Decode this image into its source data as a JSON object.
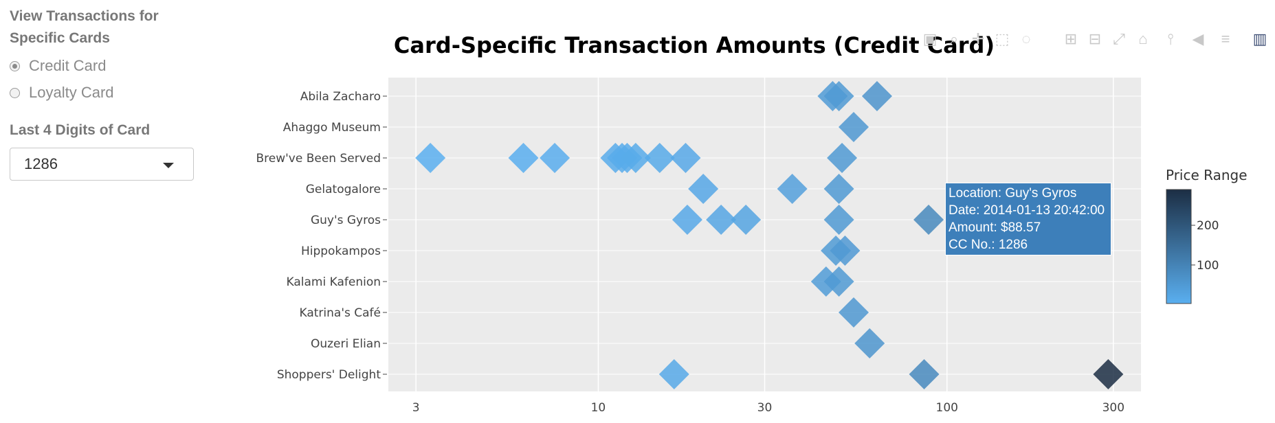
{
  "sidebar": {
    "heading": "View Transactions for Specific Cards",
    "heading_line1": "View Transactions for",
    "heading_line2": "Specific Cards",
    "radio_options": [
      {
        "label": "Credit Card",
        "checked": true
      },
      {
        "label": "Loyalty Card",
        "checked": false
      }
    ],
    "select_label": "Last 4 Digits of Card",
    "select_value": "1286"
  },
  "modebar": {
    "icons": [
      "camera-icon",
      "zoom-icon",
      "pan-icon",
      "box-select-icon",
      "lasso-select-icon",
      "zoom-in-icon",
      "zoom-out-icon",
      "autoscale-icon",
      "reset-axes-icon",
      "spike-lines-icon",
      "hover-closest-icon",
      "hover-compare-icon",
      "plotly-logo-icon"
    ],
    "color": "#c8c8c8"
  },
  "tooltip": {
    "lines": [
      "Location: Guy's Gyros",
      "Date: 2014-01-13 20:42:00",
      "Amount: $88.57",
      "CC No.: 1286"
    ]
  },
  "chart_data": {
    "type": "scatter",
    "title": "Card-Specific Transaction Amounts (Credit Card)",
    "x_scale": "log",
    "xlim": [
      2.5,
      360
    ],
    "x_ticks": [
      3,
      10,
      30,
      100,
      300
    ],
    "x_tick_labels": [
      "3",
      "10",
      "30",
      "100",
      "300"
    ],
    "categories": [
      "Abila Zacharo",
      "Ahaggo Museum",
      "Brew've Been Served",
      "Gelatogalore",
      "Guy's Gyros",
      "Hippokampos",
      "Kalami Kafenion",
      "Katrina's Café",
      "Ouzeri Elian",
      "Shoppers' Delight"
    ],
    "marker": "diamond",
    "colorbar": {
      "title": "Price Range",
      "ticks": [
        100,
        200
      ],
      "range": [
        3,
        290
      ],
      "color_low": "#5aaff0",
      "color_high": "#1c2e44"
    },
    "background": "#ebebeb",
    "points": [
      {
        "y": "Abila Zacharo",
        "x": 47
      },
      {
        "y": "Abila Zacharo",
        "x": 49
      },
      {
        "y": "Abila Zacharo",
        "x": 63
      },
      {
        "y": "Ahaggo Museum",
        "x": 54
      },
      {
        "y": "Brew've Been Served",
        "x": 3.3
      },
      {
        "y": "Brew've Been Served",
        "x": 6.1
      },
      {
        "y": "Brew've Been Served",
        "x": 7.5
      },
      {
        "y": "Brew've Been Served",
        "x": 11.2
      },
      {
        "y": "Brew've Been Served",
        "x": 11.7
      },
      {
        "y": "Brew've Been Served",
        "x": 12.1
      },
      {
        "y": "Brew've Been Served",
        "x": 12.8
      },
      {
        "y": "Brew've Been Served",
        "x": 15.0
      },
      {
        "y": "Brew've Been Served",
        "x": 17.8
      },
      {
        "y": "Brew've Been Served",
        "x": 50
      },
      {
        "y": "Gelatogalore",
        "x": 20
      },
      {
        "y": "Gelatogalore",
        "x": 36
      },
      {
        "y": "Gelatogalore",
        "x": 49
      },
      {
        "y": "Guy's Gyros",
        "x": 18
      },
      {
        "y": "Guy's Gyros",
        "x": 22.5
      },
      {
        "y": "Guy's Gyros",
        "x": 26.5
      },
      {
        "y": "Guy's Gyros",
        "x": 49
      },
      {
        "y": "Guy's Gyros",
        "x": 88.57
      },
      {
        "y": "Hippokampos",
        "x": 48
      },
      {
        "y": "Hippokampos",
        "x": 51
      },
      {
        "y": "Kalami Kafenion",
        "x": 45
      },
      {
        "y": "Kalami Kafenion",
        "x": 49
      },
      {
        "y": "Katrina's Café",
        "x": 54
      },
      {
        "y": "Ouzeri Elian",
        "x": 60
      },
      {
        "y": "Shoppers' Delight",
        "x": 16.5
      },
      {
        "y": "Shoppers' Delight",
        "x": 86
      },
      {
        "y": "Shoppers' Delight",
        "x": 290
      }
    ]
  }
}
